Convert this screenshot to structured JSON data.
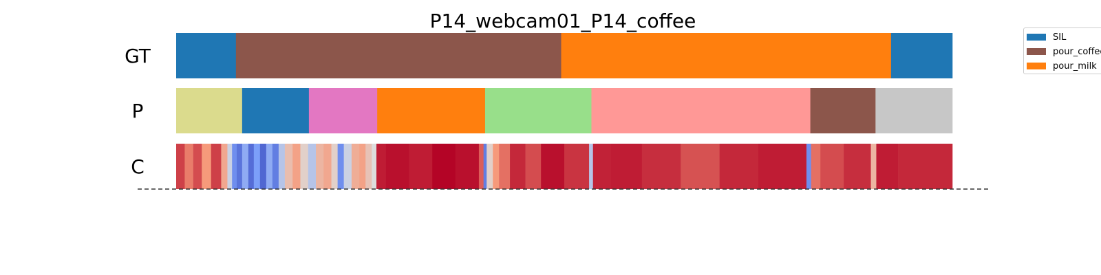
{
  "chart_data": {
    "type": "segmentation",
    "title": "P14_webcam01_P14_coffee",
    "x_range": [
      0,
      1
    ],
    "rows": [
      {
        "name": "GT",
        "segments": [
          {
            "start": 0.0,
            "end": 0.077,
            "label": "SIL",
            "color": "#1f77b4"
          },
          {
            "start": 0.077,
            "end": 0.496,
            "label": "pour_coffee",
            "color": "#8c564b"
          },
          {
            "start": 0.496,
            "end": 0.921,
            "label": "pour_milk",
            "color": "#ff7f0e"
          },
          {
            "start": 0.921,
            "end": 1.0,
            "label": "SIL",
            "color": "#1f77b4"
          }
        ]
      },
      {
        "name": "P",
        "segments": [
          {
            "start": 0.0,
            "end": 0.085,
            "color": "#dbdb8d"
          },
          {
            "start": 0.085,
            "end": 0.171,
            "color": "#1f77b4"
          },
          {
            "start": 0.171,
            "end": 0.259,
            "color": "#e377c2"
          },
          {
            "start": 0.259,
            "end": 0.398,
            "color": "#ff7f0e"
          },
          {
            "start": 0.398,
            "end": 0.535,
            "color": "#98df8a"
          },
          {
            "start": 0.535,
            "end": 0.817,
            "color": "#ff9896"
          },
          {
            "start": 0.817,
            "end": 0.901,
            "color": "#8c564b"
          },
          {
            "start": 0.901,
            "end": 1.0,
            "color": "#c7c7c7"
          }
        ]
      },
      {
        "name": "C",
        "colormap": "coolwarm",
        "confidence": [
          {
            "start": 0.0,
            "end": 0.011,
            "value": 0.9
          },
          {
            "start": 0.011,
            "end": 0.022,
            "value": 0.8
          },
          {
            "start": 0.022,
            "end": 0.033,
            "value": 0.88
          },
          {
            "start": 0.033,
            "end": 0.045,
            "value": 0.75
          },
          {
            "start": 0.045,
            "end": 0.058,
            "value": 0.9
          },
          {
            "start": 0.058,
            "end": 0.066,
            "value": 0.7
          },
          {
            "start": 0.066,
            "end": 0.072,
            "value": 0.45
          },
          {
            "start": 0.072,
            "end": 0.078,
            "value": 0.2
          },
          {
            "start": 0.078,
            "end": 0.085,
            "value": 0.12
          },
          {
            "start": 0.085,
            "end": 0.093,
            "value": 0.3
          },
          {
            "start": 0.093,
            "end": 0.1,
            "value": 0.1
          },
          {
            "start": 0.1,
            "end": 0.108,
            "value": 0.25
          },
          {
            "start": 0.108,
            "end": 0.116,
            "value": 0.08
          },
          {
            "start": 0.116,
            "end": 0.124,
            "value": 0.3
          },
          {
            "start": 0.124,
            "end": 0.132,
            "value": 0.15
          },
          {
            "start": 0.132,
            "end": 0.14,
            "value": 0.4
          },
          {
            "start": 0.14,
            "end": 0.15,
            "value": 0.62
          },
          {
            "start": 0.15,
            "end": 0.16,
            "value": 0.72
          },
          {
            "start": 0.16,
            "end": 0.17,
            "value": 0.55
          },
          {
            "start": 0.17,
            "end": 0.18,
            "value": 0.4
          },
          {
            "start": 0.18,
            "end": 0.19,
            "value": 0.65
          },
          {
            "start": 0.19,
            "end": 0.2,
            "value": 0.7
          },
          {
            "start": 0.2,
            "end": 0.208,
            "value": 0.55
          },
          {
            "start": 0.208,
            "end": 0.216,
            "value": 0.2
          },
          {
            "start": 0.216,
            "end": 0.226,
            "value": 0.45
          },
          {
            "start": 0.226,
            "end": 0.236,
            "value": 0.68
          },
          {
            "start": 0.236,
            "end": 0.244,
            "value": 0.72
          },
          {
            "start": 0.244,
            "end": 0.252,
            "value": 0.6
          },
          {
            "start": 0.252,
            "end": 0.258,
            "value": 0.5
          },
          {
            "start": 0.258,
            "end": 0.27,
            "value": 0.96
          },
          {
            "start": 0.27,
            "end": 0.3,
            "value": 0.98
          },
          {
            "start": 0.3,
            "end": 0.33,
            "value": 0.96
          },
          {
            "start": 0.33,
            "end": 0.36,
            "value": 1.0
          },
          {
            "start": 0.36,
            "end": 0.39,
            "value": 0.98
          },
          {
            "start": 0.39,
            "end": 0.396,
            "value": 0.85
          },
          {
            "start": 0.396,
            "end": 0.4,
            "value": 0.15
          },
          {
            "start": 0.4,
            "end": 0.408,
            "value": 0.55
          },
          {
            "start": 0.408,
            "end": 0.416,
            "value": 0.75
          },
          {
            "start": 0.416,
            "end": 0.43,
            "value": 0.82
          },
          {
            "start": 0.43,
            "end": 0.45,
            "value": 0.94
          },
          {
            "start": 0.45,
            "end": 0.47,
            "value": 0.88
          },
          {
            "start": 0.47,
            "end": 0.5,
            "value": 0.98
          },
          {
            "start": 0.5,
            "end": 0.532,
            "value": 0.92
          },
          {
            "start": 0.532,
            "end": 0.537,
            "value": 0.4
          },
          {
            "start": 0.537,
            "end": 0.56,
            "value": 0.95
          },
          {
            "start": 0.56,
            "end": 0.6,
            "value": 0.96
          },
          {
            "start": 0.6,
            "end": 0.65,
            "value": 0.93
          },
          {
            "start": 0.65,
            "end": 0.7,
            "value": 0.87
          },
          {
            "start": 0.7,
            "end": 0.75,
            "value": 0.94
          },
          {
            "start": 0.75,
            "end": 0.812,
            "value": 0.96
          },
          {
            "start": 0.812,
            "end": 0.818,
            "value": 0.2
          },
          {
            "start": 0.818,
            "end": 0.83,
            "value": 0.82
          },
          {
            "start": 0.83,
            "end": 0.86,
            "value": 0.88
          },
          {
            "start": 0.86,
            "end": 0.895,
            "value": 0.93
          },
          {
            "start": 0.895,
            "end": 0.902,
            "value": 0.65
          },
          {
            "start": 0.902,
            "end": 0.93,
            "value": 0.96
          },
          {
            "start": 0.93,
            "end": 1.0,
            "value": 0.94
          }
        ]
      }
    ],
    "legend": {
      "placement": "upper-right",
      "entries": [
        {
          "label": "SIL",
          "color": "#1f77b4"
        },
        {
          "label": "pour_coffee",
          "color": "#8c564b"
        },
        {
          "label": "pour_milk",
          "color": "#ff7f0e"
        }
      ]
    },
    "baseline": {
      "style": "dashed",
      "color": "#333333"
    }
  }
}
